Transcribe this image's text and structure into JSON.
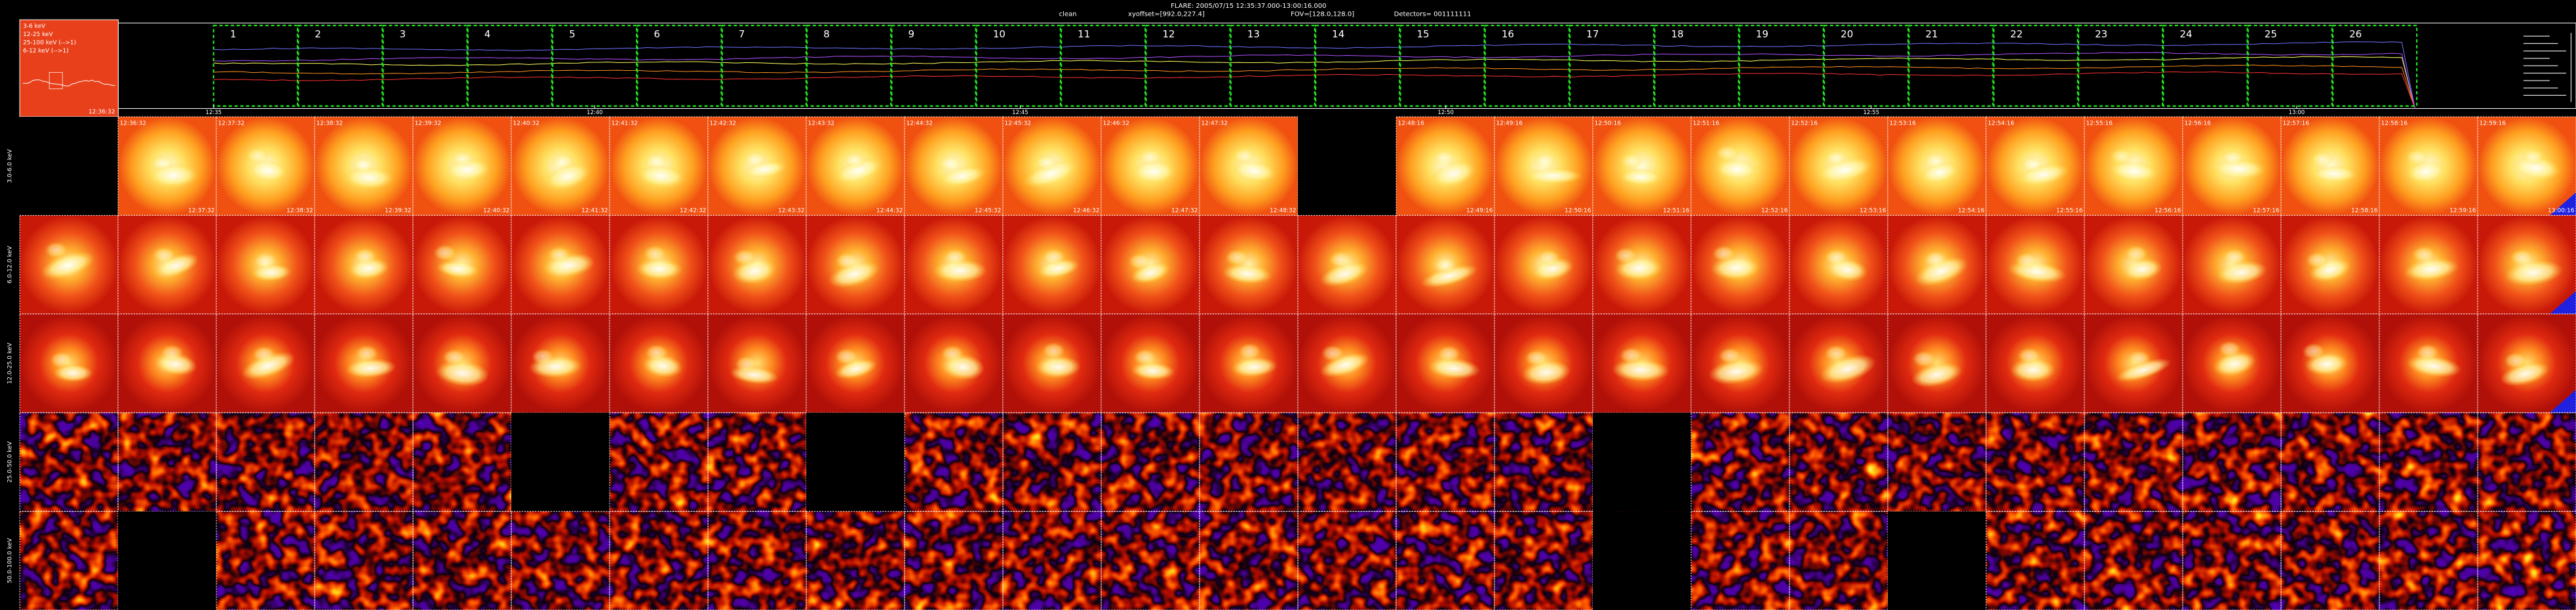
{
  "header": {
    "title": "FLARE: 2005/07/15 12:35:37.000-13:00:16.000",
    "method": "clean",
    "xyoffset": "xyoffset=[992.0,227.4]",
    "fov": "FOV=[128.0,128.0]",
    "detectors": "Detectors= 001111111"
  },
  "thumbnail": {
    "legend": [
      "3-6 keV",
      "12-25 keV",
      "25-100 keV (-->1)",
      "6-12 keV (-->1)"
    ],
    "time": "12:36:32"
  },
  "lightcurve": {
    "intervals": [
      1,
      2,
      3,
      4,
      5,
      6,
      7,
      8,
      9,
      10,
      11,
      12,
      13,
      14,
      15,
      16,
      17,
      18,
      19,
      20,
      21,
      22,
      23,
      24,
      25,
      26
    ],
    "time_labels": [
      "12:35",
      "12:40",
      "12:45",
      "12:50",
      "12:55",
      "13:00"
    ]
  },
  "image_grid": {
    "rows": [
      {
        "label": "3.0-6.0 keV",
        "start_times": [
          "12:36:32",
          "12:37:32",
          "12:38:32",
          "12:39:32",
          "12:40:32",
          "12:41:32",
          "12:42:32",
          "12:43:32",
          "12:44:32",
          "12:45:32",
          "12:46:32",
          "12:47:32",
          "12:48:16",
          "12:49:16",
          "12:50:16",
          "12:51:16",
          "12:52:16",
          "12:53:16",
          "12:54:16",
          "12:55:16",
          "12:56:16",
          "12:57:16",
          "12:58:16",
          "12:59:16"
        ],
        "end_times": [
          "12:37:32",
          "12:38:32",
          "12:39:32",
          "12:40:32",
          "12:41:32",
          "12:42:32",
          "12:43:32",
          "12:44:32",
          "12:45:32",
          "12:46:32",
          "12:47:32",
          "12:48:32",
          "12:49:16",
          "12:50:16",
          "12:51:16",
          "12:52:16",
          "12:53:16",
          "12:54:16",
          "12:55:16",
          "12:56:16",
          "12:57:16",
          "12:58:16",
          "12:59:16",
          "13:00:16"
        ]
      },
      {
        "label": "6.0-12.0 keV"
      },
      {
        "label": "12.0-25.0 keV"
      },
      {
        "label": "25.0-50.0 keV"
      },
      {
        "label": "50.0-100.0 keV"
      }
    ]
  }
}
